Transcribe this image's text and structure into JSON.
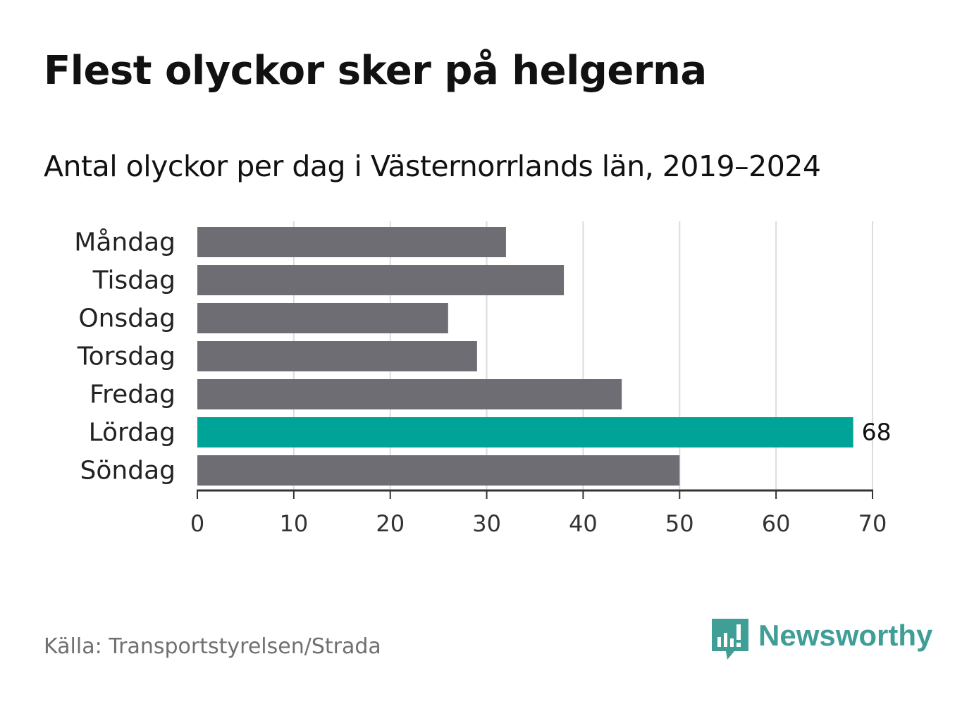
{
  "title": "Flest olyckor sker på helgerna",
  "subtitle": "Antal olyckor per dag i Västernorrlands län, 2019–2024",
  "source": "Källa: Transportstyrelsen/Strada",
  "brand": {
    "name": "Newsworthy",
    "color": "#3f9e96",
    "icon": "newsworthy-logo-icon"
  },
  "colors": {
    "default_bar": "#6e6d73",
    "highlight_bar": "#00a398",
    "grid": "#dcdcdc",
    "axis": "#333333"
  },
  "chart_data": {
    "type": "bar",
    "orientation": "horizontal",
    "categories": [
      "Måndag",
      "Tisdag",
      "Onsdag",
      "Torsdag",
      "Fredag",
      "Lördag",
      "Söndag"
    ],
    "values": [
      32,
      38,
      26,
      29,
      44,
      68,
      50
    ],
    "highlight": "Lördag",
    "data_labels": [
      {
        "category": "Lördag",
        "label": "68"
      }
    ],
    "xlim": [
      0,
      70
    ],
    "xticks": [
      0,
      10,
      20,
      30,
      40,
      50,
      60,
      70
    ],
    "xlabel": "",
    "ylabel": "",
    "grid": "vertical"
  }
}
